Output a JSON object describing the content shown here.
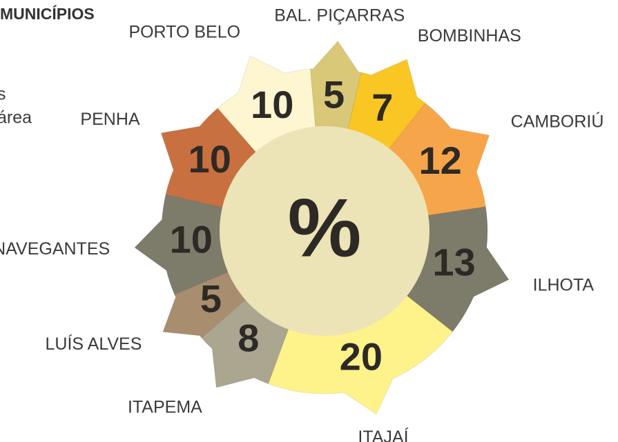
{
  "chart_data": {
    "type": "pie",
    "title": "MUNICÍPIOS",
    "notes": [
      "s",
      "área"
    ],
    "center_label": "%",
    "categories": [
      "BAL. PIÇARRAS",
      "BOMBINHAS",
      "CAMBORIÚ",
      "ILHOTA",
      "ITAJAÍ",
      "ITAPEMA",
      "LUÍS ALVES",
      "NAVEGANTES",
      "PENHA",
      "PORTO BELO"
    ],
    "values": [
      5,
      7,
      12,
      13,
      20,
      8,
      5,
      10,
      10,
      10
    ],
    "colors": [
      "#d8c878",
      "#f9c623",
      "#f7a54a",
      "#7d7b6a",
      "#fef28a",
      "#aaa690",
      "#a88d6e",
      "#7d7b6a",
      "#c97040",
      "#fdf6d0"
    ]
  }
}
